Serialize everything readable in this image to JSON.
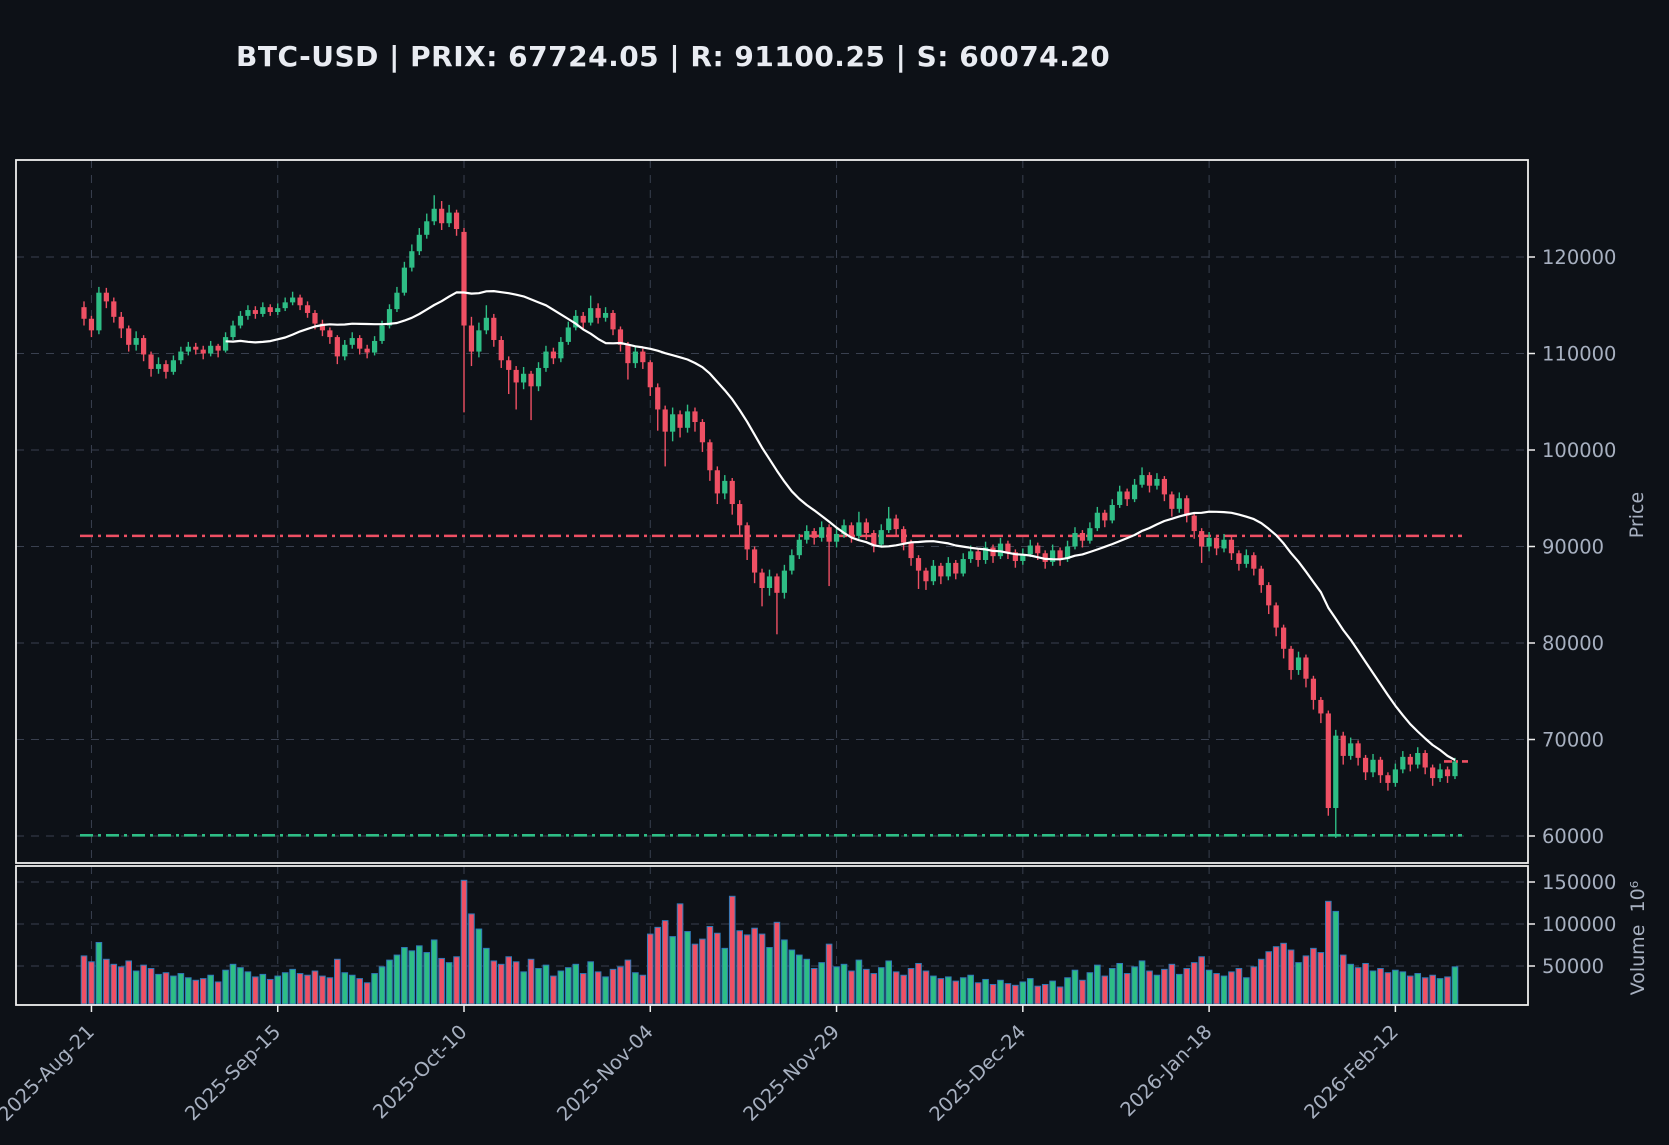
{
  "title": "BTC-USD | PRIX: 67724.05 | R: 91100.25 | S: 60074.20",
  "symbol": "BTC-USD",
  "last_price": 67724.05,
  "resistance": 91100.25,
  "support": 60074.2,
  "colors": {
    "background": "#0d1117",
    "up": "#2ebd85",
    "down": "#ef5064",
    "volume_edge": "#2f7ab8",
    "ma_line": "#ffffff",
    "resistance": "#ef5064",
    "support": "#2ebd85",
    "last_price_marker": "#ef5064",
    "grid": "#39404f",
    "border": "#eeeeee",
    "tick_text": "#a7b0c0",
    "title_text": "#e9ecf2"
  },
  "axes": {
    "price_label": "Price",
    "volume_label": "Volume",
    "volume_unit": "10⁶",
    "price_ticks": [
      60000,
      70000,
      80000,
      90000,
      100000,
      110000,
      120000
    ],
    "volume_ticks": [
      50000,
      100000,
      150000
    ],
    "date_ticks": [
      {
        "i": 1,
        "label": "2025-Aug-21"
      },
      {
        "i": 26,
        "label": "2025-Sep-15"
      },
      {
        "i": 51,
        "label": "2025-Oct-10"
      },
      {
        "i": 76,
        "label": "2025-Nov-04"
      },
      {
        "i": 101,
        "label": "2025-Nov-29"
      },
      {
        "i": 126,
        "label": "2025-Dec-24"
      },
      {
        "i": 151,
        "label": "2026-Jan-18"
      },
      {
        "i": 176,
        "label": "2026-Feb-12"
      }
    ]
  },
  "chart_data": {
    "type": "candlestick+volume",
    "start_date": "2025-08-20",
    "interval": "1d",
    "ma_window": 20,
    "ylim_price": [
      57000,
      130000
    ],
    "ylim_volume": [
      0,
      168000
    ],
    "hlines": {
      "resistance": 91100.25,
      "support": 60074.2
    },
    "last_close": 67724.05,
    "columns": [
      "open",
      "high",
      "low",
      "close",
      "volume"
    ],
    "candles": [
      [
        114800,
        115400,
        112900,
        113600,
        62000
      ],
      [
        113600,
        113900,
        111700,
        112400,
        55000
      ],
      [
        112400,
        116900,
        112000,
        116300,
        78000
      ],
      [
        116300,
        116800,
        114700,
        115400,
        58000
      ],
      [
        115400,
        115800,
        113200,
        113800,
        52000
      ],
      [
        113800,
        114300,
        111600,
        112600,
        49000
      ],
      [
        112600,
        112900,
        110200,
        110900,
        56000
      ],
      [
        110900,
        112300,
        110300,
        111600,
        44000
      ],
      [
        111600,
        111900,
        109200,
        109900,
        51000
      ],
      [
        109900,
        110200,
        107600,
        108400,
        47000
      ],
      [
        108400,
        109600,
        107900,
        108900,
        40000
      ],
      [
        108900,
        109300,
        107400,
        108100,
        42000
      ],
      [
        108100,
        109800,
        107800,
        109300,
        38000
      ],
      [
        109300,
        110700,
        108900,
        110200,
        41000
      ],
      [
        110200,
        111200,
        109800,
        110700,
        36000
      ],
      [
        110700,
        111100,
        109900,
        110400,
        33000
      ],
      [
        110400,
        110800,
        109400,
        110000,
        35000
      ],
      [
        110000,
        111300,
        109700,
        110800,
        39000
      ],
      [
        110800,
        111000,
        109600,
        110300,
        31000
      ],
      [
        110300,
        112200,
        110100,
        111700,
        45000
      ],
      [
        111700,
        113400,
        111400,
        112900,
        52000
      ],
      [
        112900,
        114400,
        112600,
        113900,
        48000
      ],
      [
        113900,
        115000,
        113500,
        114500,
        43000
      ],
      [
        114500,
        114900,
        113600,
        114100,
        37000
      ],
      [
        114100,
        115300,
        113800,
        114800,
        40000
      ],
      [
        114800,
        115100,
        113900,
        114300,
        34000
      ],
      [
        114300,
        115200,
        114000,
        114700,
        38000
      ],
      [
        114700,
        115800,
        114400,
        115300,
        42000
      ],
      [
        115300,
        116400,
        115000,
        115800,
        46000
      ],
      [
        115800,
        116100,
        114500,
        115000,
        41000
      ],
      [
        115000,
        115400,
        113700,
        114200,
        39000
      ],
      [
        114200,
        114500,
        112500,
        113100,
        44000
      ],
      [
        113100,
        113500,
        111800,
        112400,
        38000
      ],
      [
        112400,
        112700,
        111000,
        111700,
        36000
      ],
      [
        111700,
        111900,
        108900,
        109700,
        58000
      ],
      [
        109700,
        111400,
        109300,
        110900,
        42000
      ],
      [
        110900,
        112200,
        110500,
        111600,
        39000
      ],
      [
        111600,
        111900,
        109900,
        110500,
        35000
      ],
      [
        110500,
        110900,
        109500,
        110100,
        30000
      ],
      [
        110100,
        111800,
        109800,
        111300,
        41000
      ],
      [
        111300,
        113400,
        111000,
        112900,
        49000
      ],
      [
        112900,
        115100,
        112600,
        114600,
        57000
      ],
      [
        114600,
        116900,
        114300,
        116300,
        63000
      ],
      [
        116300,
        119500,
        116000,
        118900,
        72000
      ],
      [
        118900,
        121300,
        118500,
        120600,
        68000
      ],
      [
        120600,
        123000,
        120200,
        122300,
        74000
      ],
      [
        122300,
        124500,
        121900,
        123700,
        66000
      ],
      [
        123700,
        126400,
        123300,
        125000,
        81000
      ],
      [
        125000,
        125800,
        122800,
        123500,
        59000
      ],
      [
        123500,
        125400,
        123100,
        124600,
        54000
      ],
      [
        124600,
        124900,
        122200,
        122900,
        61000
      ],
      [
        122600,
        123000,
        103900,
        112900,
        152000
      ],
      [
        112900,
        113800,
        108700,
        110200,
        112000
      ],
      [
        110200,
        113200,
        109600,
        112400,
        94000
      ],
      [
        112400,
        115000,
        112000,
        113700,
        71000
      ],
      [
        113700,
        114100,
        110700,
        111400,
        56000
      ],
      [
        111400,
        111800,
        108500,
        109300,
        52000
      ],
      [
        109300,
        109700,
        105800,
        108300,
        61000
      ],
      [
        108300,
        108700,
        104200,
        107000,
        55000
      ],
      [
        107000,
        108600,
        106300,
        107900,
        43000
      ],
      [
        107900,
        108200,
        103100,
        106600,
        58000
      ],
      [
        106600,
        109100,
        106100,
        108500,
        47000
      ],
      [
        108500,
        110800,
        108100,
        110200,
        51000
      ],
      [
        110200,
        110600,
        108900,
        109500,
        38000
      ],
      [
        109500,
        111700,
        109100,
        111200,
        44000
      ],
      [
        111200,
        113300,
        110900,
        112700,
        48000
      ],
      [
        112700,
        114500,
        112400,
        113900,
        52000
      ],
      [
        113900,
        114300,
        112600,
        113200,
        41000
      ],
      [
        113200,
        116000,
        112900,
        114700,
        55000
      ],
      [
        114700,
        115200,
        113100,
        113700,
        43000
      ],
      [
        113700,
        114800,
        113300,
        114200,
        37000
      ],
      [
        114200,
        114500,
        111900,
        112500,
        46000
      ],
      [
        112500,
        112800,
        110200,
        110900,
        49000
      ],
      [
        110900,
        111200,
        107300,
        109000,
        57000
      ],
      [
        109000,
        110800,
        108500,
        110200,
        42000
      ],
      [
        110200,
        110500,
        108400,
        109100,
        39000
      ],
      [
        109100,
        109300,
        105600,
        106500,
        88000
      ],
      [
        106500,
        106900,
        102000,
        104200,
        96000
      ],
      [
        104200,
        104600,
        98300,
        101900,
        104000
      ],
      [
        101900,
        104400,
        100900,
        103700,
        85000
      ],
      [
        103700,
        104100,
        101300,
        102300,
        124000
      ],
      [
        102300,
        104700,
        101800,
        104000,
        91000
      ],
      [
        104000,
        104400,
        101900,
        102900,
        76000
      ],
      [
        102900,
        103200,
        99800,
        100800,
        82000
      ],
      [
        100800,
        101100,
        96800,
        97900,
        97000
      ],
      [
        97900,
        98300,
        94400,
        95500,
        89000
      ],
      [
        95500,
        97400,
        94900,
        96800,
        71000
      ],
      [
        96800,
        97100,
        93300,
        94400,
        133000
      ],
      [
        94400,
        94800,
        91200,
        92200,
        92000
      ],
      [
        92200,
        92500,
        88600,
        89700,
        87000
      ],
      [
        89700,
        90000,
        86200,
        87300,
        95000
      ],
      [
        87300,
        87700,
        83800,
        85700,
        88000
      ],
      [
        85700,
        87600,
        84900,
        86900,
        72000
      ],
      [
        86900,
        87200,
        80900,
        85200,
        102000
      ],
      [
        85200,
        88100,
        84600,
        87500,
        81000
      ],
      [
        87500,
        89700,
        87100,
        89100,
        69000
      ],
      [
        89100,
        91300,
        88700,
        90700,
        63000
      ],
      [
        90700,
        92200,
        90300,
        91600,
        58000
      ],
      [
        91600,
        91900,
        90200,
        90900,
        47000
      ],
      [
        90900,
        92600,
        90500,
        92000,
        54000
      ],
      [
        92000,
        92300,
        85900,
        90500,
        76000
      ],
      [
        90500,
        91900,
        89900,
        91300,
        49000
      ],
      [
        91300,
        92800,
        90900,
        92200,
        52000
      ],
      [
        92200,
        92500,
        90400,
        91100,
        44000
      ],
      [
        91100,
        93600,
        90800,
        92500,
        57000
      ],
      [
        92500,
        92900,
        90700,
        91400,
        46000
      ],
      [
        91400,
        91700,
        89400,
        90200,
        41000
      ],
      [
        90200,
        92300,
        89900,
        91700,
        48000
      ],
      [
        91700,
        94100,
        91400,
        92900,
        56000
      ],
      [
        92900,
        93300,
        91100,
        91800,
        43000
      ],
      [
        91800,
        92100,
        89600,
        90400,
        39000
      ],
      [
        90400,
        90700,
        88000,
        88800,
        47000
      ],
      [
        88800,
        89100,
        85600,
        87500,
        53000
      ],
      [
        87500,
        87800,
        85500,
        86400,
        44000
      ],
      [
        86400,
        88600,
        86000,
        88000,
        38000
      ],
      [
        88000,
        88300,
        86100,
        86900,
        35000
      ],
      [
        86900,
        88900,
        86500,
        88300,
        37000
      ],
      [
        88300,
        88600,
        86600,
        87200,
        32000
      ],
      [
        87200,
        89300,
        86900,
        88700,
        36000
      ],
      [
        88700,
        90100,
        88300,
        89500,
        39000
      ],
      [
        89500,
        89800,
        87900,
        88600,
        30000
      ],
      [
        88600,
        90500,
        88200,
        89900,
        34000
      ],
      [
        89900,
        90200,
        88300,
        89000,
        28000
      ],
      [
        89000,
        90900,
        88700,
        90300,
        33000
      ],
      [
        90300,
        90600,
        88700,
        89400,
        29000
      ],
      [
        89400,
        89700,
        87800,
        88500,
        27000
      ],
      [
        88500,
        89800,
        88100,
        89200,
        31000
      ],
      [
        89200,
        90700,
        88900,
        90100,
        35000
      ],
      [
        90100,
        90400,
        88600,
        89300,
        26000
      ],
      [
        89300,
        89600,
        87700,
        88400,
        28000
      ],
      [
        88400,
        90200,
        88000,
        89600,
        32000
      ],
      [
        89600,
        89900,
        88000,
        88700,
        25000
      ],
      [
        88700,
        90600,
        88400,
        90000,
        36000
      ],
      [
        90000,
        92000,
        89700,
        91400,
        45000
      ],
      [
        91400,
        91700,
        89900,
        90600,
        33000
      ],
      [
        90600,
        92500,
        90300,
        91900,
        42000
      ],
      [
        91900,
        94100,
        91600,
        93500,
        51000
      ],
      [
        93500,
        93800,
        92000,
        92700,
        38000
      ],
      [
        92700,
        94900,
        92400,
        94300,
        47000
      ],
      [
        94300,
        96300,
        94000,
        95700,
        53000
      ],
      [
        95700,
        96000,
        94200,
        94900,
        41000
      ],
      [
        94900,
        97000,
        94600,
        96400,
        49000
      ],
      [
        96400,
        98200,
        96100,
        97400,
        56000
      ],
      [
        97400,
        97700,
        95600,
        96300,
        44000
      ],
      [
        96300,
        97600,
        95900,
        97000,
        39000
      ],
      [
        97000,
        97300,
        94700,
        95400,
        46000
      ],
      [
        95400,
        95700,
        93100,
        93900,
        52000
      ],
      [
        93900,
        95600,
        93500,
        95000,
        40000
      ],
      [
        95000,
        95300,
        92500,
        93200,
        47000
      ],
      [
        93200,
        93500,
        90800,
        91600,
        54000
      ],
      [
        91600,
        91900,
        88300,
        90000,
        61000
      ],
      [
        90000,
        91500,
        89500,
        90900,
        45000
      ],
      [
        90900,
        91200,
        89100,
        89800,
        41000
      ],
      [
        89800,
        91300,
        89400,
        90700,
        38000
      ],
      [
        90700,
        91000,
        88600,
        89300,
        43000
      ],
      [
        89300,
        89600,
        87500,
        88200,
        47000
      ],
      [
        88200,
        89700,
        87800,
        89100,
        36000
      ],
      [
        89100,
        89400,
        87000,
        87700,
        49000
      ],
      [
        87700,
        88000,
        85200,
        86000,
        58000
      ],
      [
        86000,
        86300,
        83000,
        83900,
        67000
      ],
      [
        83900,
        84200,
        80700,
        81600,
        73000
      ],
      [
        81600,
        81900,
        78400,
        79400,
        77000
      ],
      [
        79400,
        79700,
        76200,
        77200,
        69000
      ],
      [
        77200,
        79100,
        76700,
        78500,
        54000
      ],
      [
        78500,
        78800,
        75400,
        76300,
        62000
      ],
      [
        76300,
        76600,
        73100,
        74100,
        71000
      ],
      [
        74100,
        74400,
        71700,
        72700,
        66000
      ],
      [
        72700,
        73000,
        62100,
        62900,
        127000
      ],
      [
        62900,
        71000,
        59800,
        70400,
        115000
      ],
      [
        70400,
        70800,
        67400,
        68300,
        63000
      ],
      [
        68300,
        70200,
        67900,
        69600,
        52000
      ],
      [
        69600,
        69900,
        67300,
        68100,
        48000
      ],
      [
        68100,
        68400,
        65800,
        66600,
        53000
      ],
      [
        66600,
        68500,
        66100,
        67900,
        44000
      ],
      [
        67900,
        68200,
        65500,
        66300,
        47000
      ],
      [
        66300,
        66600,
        64700,
        65500,
        42000
      ],
      [
        65500,
        67500,
        65100,
        66900,
        45000
      ],
      [
        66900,
        68800,
        66500,
        68200,
        43000
      ],
      [
        68200,
        68500,
        66700,
        67400,
        38000
      ],
      [
        67400,
        69200,
        67000,
        68600,
        41000
      ],
      [
        68600,
        68900,
        66400,
        67100,
        36000
      ],
      [
        67100,
        67400,
        65200,
        66000,
        39000
      ],
      [
        66000,
        67500,
        65600,
        66900,
        35000
      ],
      [
        66900,
        67200,
        65500,
        66200,
        37000
      ],
      [
        66200,
        68100,
        65900,
        67724,
        49000
      ]
    ]
  }
}
